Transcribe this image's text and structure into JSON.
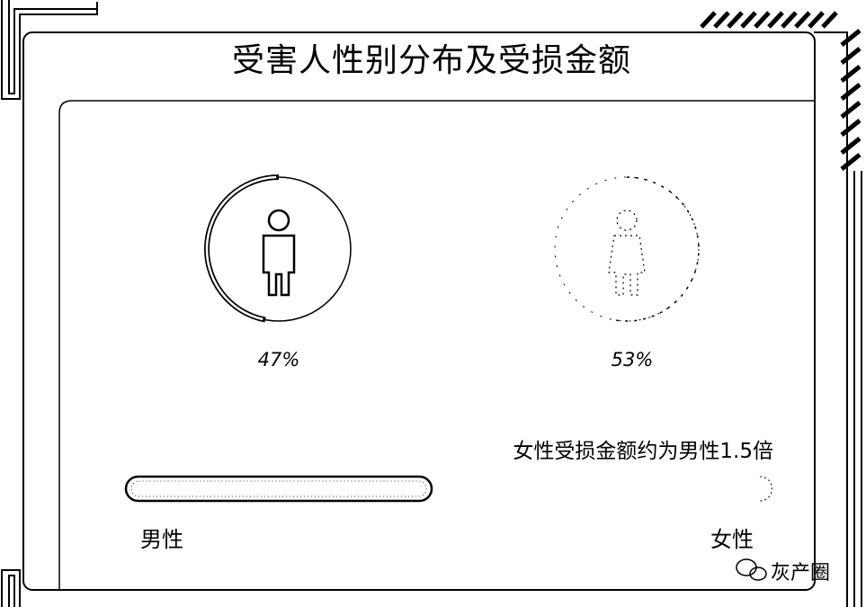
{
  "title": "受害人性别分布及受损金额",
  "note": "女性受损金额约为男性1.5倍",
  "watermark": "灰产圈",
  "chart_data": [
    {
      "type": "pie",
      "title": "",
      "categories": [
        "男性",
        "女性"
      ],
      "values": [
        47,
        53
      ],
      "labels": [
        "47%",
        "53%"
      ],
      "icons": [
        "male-person-icon",
        "female-person-icon"
      ]
    },
    {
      "type": "bar",
      "title": "",
      "categories": [
        "男性",
        "女性"
      ],
      "values": [
        1,
        1.5
      ],
      "value_unit": "relative loss amount (male = 1)"
    }
  ],
  "colors": {
    "stroke": "#000000",
    "background": "#ffffff"
  }
}
